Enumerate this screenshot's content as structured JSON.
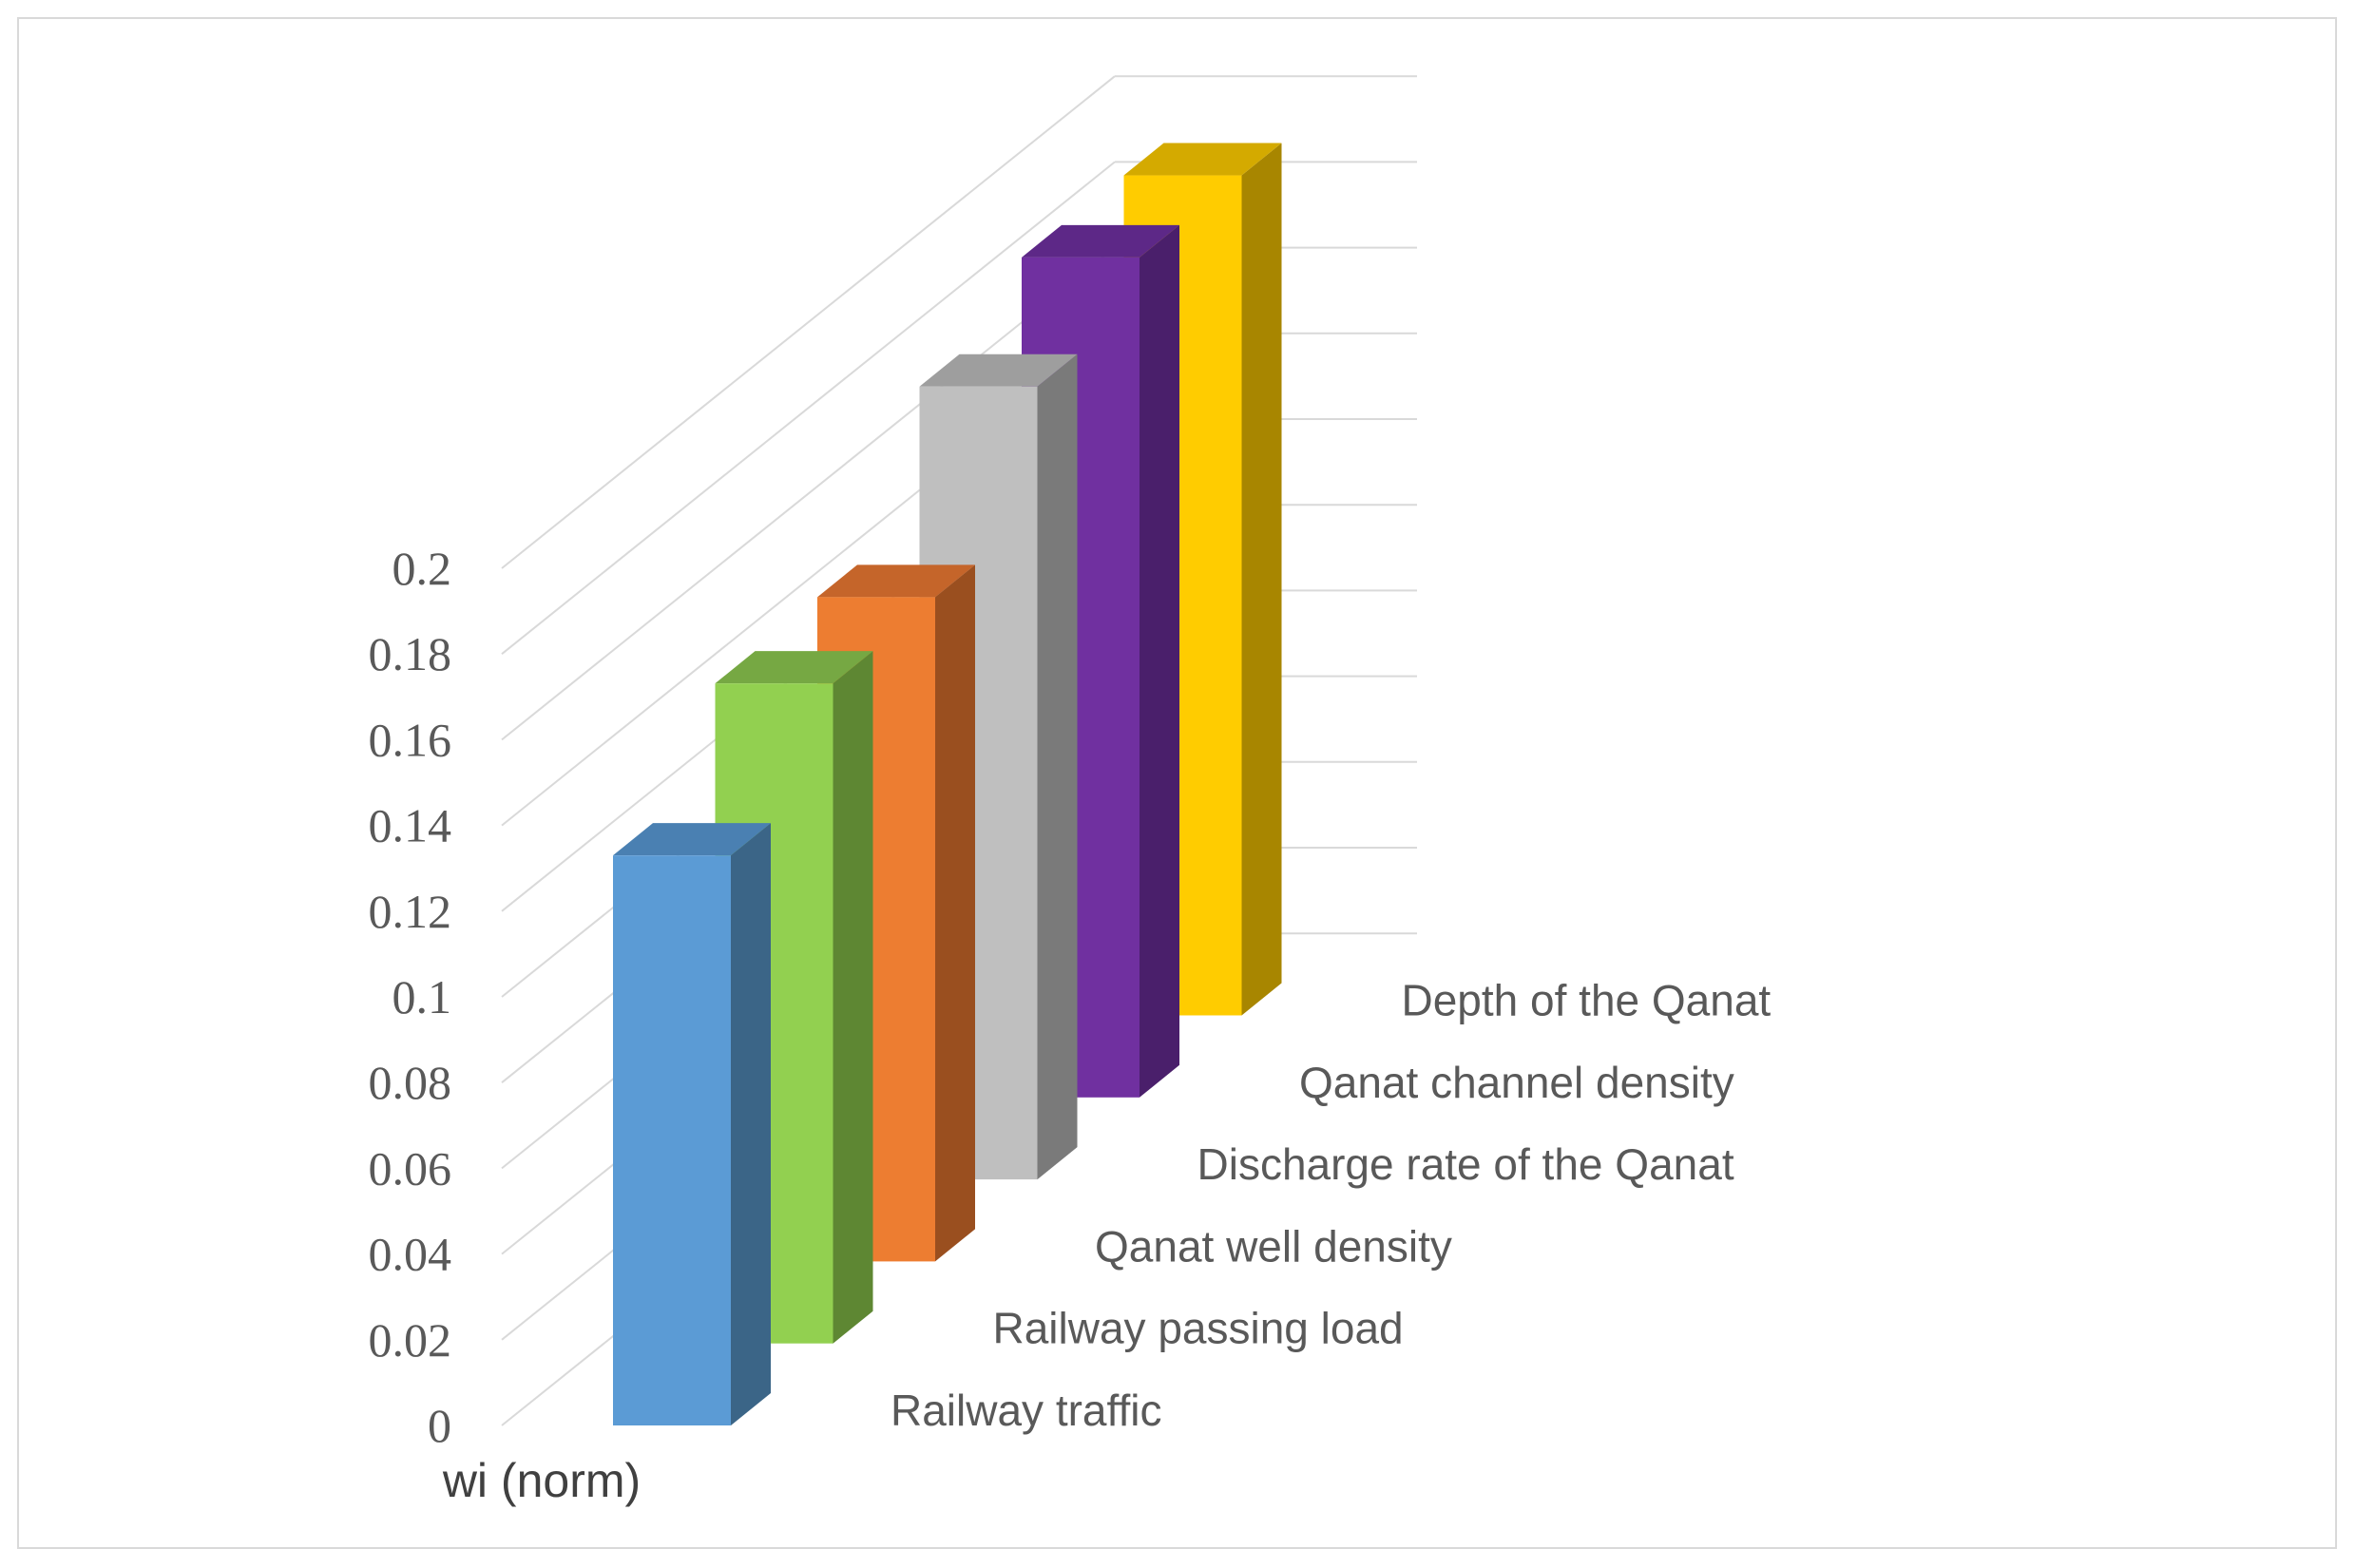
{
  "chart_data": {
    "type": "bar",
    "categories": [
      "Railway traffic",
      "Railway passing load",
      "Qanat well density",
      "Discharge rate of the Qanat",
      "Qanat channel density",
      "Depth of the Qanat"
    ],
    "series": [
      {
        "name": "wi (norm)",
        "values": [
          0.133,
          0.154,
          0.155,
          0.185,
          0.196,
          0.196
        ]
      }
    ],
    "ylim": [
      0,
      0.2
    ],
    "yticks": [
      "0",
      "0.02",
      "0.04",
      "0.06",
      "0.08",
      "0.1",
      "0.12",
      "0.14",
      "0.16",
      "0.18",
      "0.2"
    ],
    "title": "",
    "xlabel": "",
    "ylabel": "",
    "grid": true,
    "legend": "none",
    "colors": {
      "front": [
        "#5b9bd5",
        "#92d050",
        "#ed7d31",
        "#bfbfbf",
        "#7030a0",
        "#ffcc00"
      ],
      "side": [
        "#3b6587",
        "#5e8733",
        "#9a4f1f",
        "#7a7a7a",
        "#4a1f6b",
        "#a88600"
      ],
      "top": [
        "#4a80b2",
        "#76a843",
        "#c5652a",
        "#9e9e9e",
        "#5d2887",
        "#d4aa00"
      ]
    }
  }
}
